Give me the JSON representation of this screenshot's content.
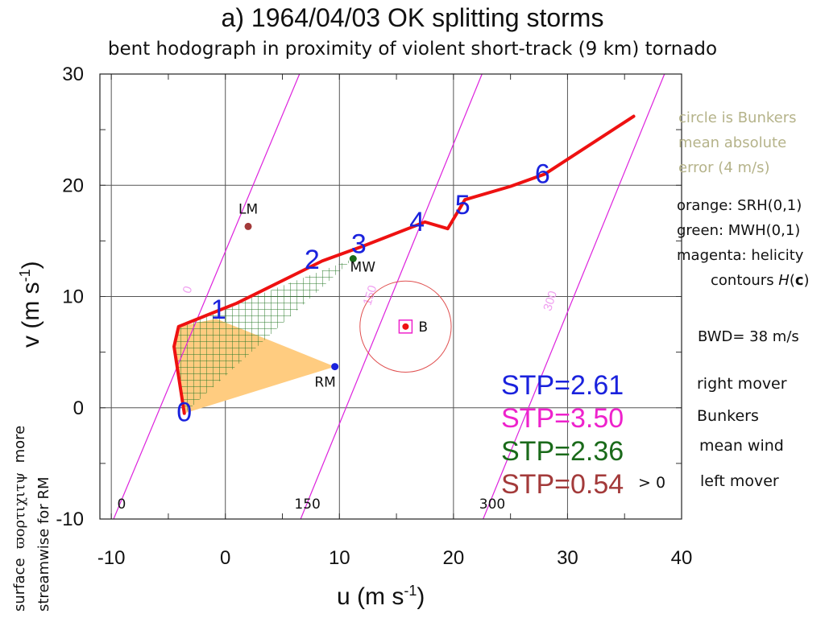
{
  "title": "a)  1964/04/03 OK splitting storms",
  "subtitle": "bent hodograph in proximity of violent short-track (9 km) tornado",
  "colors": {
    "hodograph": "#ee1111",
    "labels_blue": "#1a22dd",
    "srh_fill": "#ffcc80",
    "mwh_hatch": "#2a7a2a",
    "helicity_contour": "#dd22dd",
    "circle": "#e05050",
    "left_mover": "#a33a3a",
    "note": "#b5b38a",
    "stp_rm": "#1a22dd",
    "stp_bunkers": "#ee22cc",
    "stp_mw": "#1a6a1a",
    "stp_lm": "#a33a3a"
  },
  "chart_data": {
    "type": "line",
    "title": "a)  1964/04/03 OK splitting storms",
    "subtitle": "bent hodograph in proximity of violent short-track (9 km) tornado",
    "xlabel_main": "u (m s",
    "xlabel_sup": "-1",
    "xlabel_close": ")",
    "ylabel_main": "v (m s",
    "ylabel_sup": "-1",
    "ylabel_close": ")",
    "xlim": [
      -11,
      40
    ],
    "ylim": [
      -10,
      30
    ],
    "xticks": [
      -10,
      0,
      10,
      20,
      30,
      40
    ],
    "xtick_labels": [
      "-10",
      "0",
      "10",
      "20",
      "30",
      "40"
    ],
    "yticks": [
      -10,
      0,
      10,
      20,
      30
    ],
    "ytick_labels": [
      "-10",
      "0",
      "10",
      "20",
      "30"
    ],
    "grid": true,
    "hodograph": {
      "name": "hodograph",
      "u": [
        -3.6,
        -4.5,
        -4.1,
        1.0,
        8.5,
        12.0,
        17.5,
        19.5,
        21.0,
        25.0,
        28.0,
        35.8
      ],
      "v": [
        -0.5,
        5.5,
        7.3,
        9.4,
        13.2,
        14.5,
        16.7,
        16.1,
        18.7,
        19.9,
        21.0,
        26.2
      ]
    },
    "height_labels": [
      {
        "text": "0",
        "u": -3.6,
        "v": -1.2
      },
      {
        "text": "1",
        "u": -0.6,
        "v": 8.0
      },
      {
        "text": "2",
        "u": 7.6,
        "v": 12.5
      },
      {
        "text": "3",
        "u": 11.7,
        "v": 13.9
      },
      {
        "text": "4",
        "u": 16.8,
        "v": 15.9
      },
      {
        "text": "5",
        "u": 20.8,
        "v": 17.4
      },
      {
        "text": "6",
        "u": 27.8,
        "v": 20.2
      }
    ],
    "storm_motions": [
      {
        "label": "LM",
        "u": 2.0,
        "v": 16.3,
        "color": "#a33a3a"
      },
      {
        "label": "MW",
        "u": 11.2,
        "v": 13.4,
        "color": "#1a6a1a"
      },
      {
        "label": "RM",
        "u": 9.6,
        "v": 3.7,
        "color": "#1a22dd"
      },
      {
        "label": "B",
        "u": 15.8,
        "v": 7.3,
        "color": "#ee1111"
      }
    ],
    "bunkers_error_radius": 4,
    "srh_region": {
      "description": "orange: SRH(0,1)",
      "u": [
        -3.6,
        -4.5,
        -4.1,
        -0.8,
        9.6
      ],
      "v": [
        -0.5,
        5.5,
        7.3,
        8.0,
        3.7
      ]
    },
    "mwh_region": {
      "description": "green: MWH(0,1)",
      "u": [
        -3.6,
        -4.5,
        -4.1,
        1.0,
        11.2
      ],
      "v": [
        -0.5,
        5.5,
        7.3,
        9.4,
        13.4
      ]
    },
    "helicity_contours": [
      {
        "value": "0",
        "u": [
          -9.8,
          6.5
        ],
        "v": [
          -10,
          30
        ],
        "label_u": -3.0,
        "label_v": 10.5
      },
      {
        "value": "150",
        "u": [
          6.6,
          22.5
        ],
        "v": [
          -10,
          30
        ],
        "label_u": 13.0,
        "label_v": 10.0
      },
      {
        "value": "300",
        "u": [
          22.6,
          38.5
        ],
        "v": [
          -10,
          30
        ],
        "label_u": 28.8,
        "label_v": 9.5
      }
    ],
    "bottom_contour_labels": [
      {
        "text": "0",
        "u": -9.1
      },
      {
        "text": "150",
        "u": 7.2
      },
      {
        "text": "300",
        "u": 23.4
      }
    ]
  },
  "notes": {
    "circle_note_lines": [
      "circle is Bunkers",
      "mean absolute",
      "error (4 m/s)"
    ],
    "legend_orange": "orange: SRH(0,1)",
    "legend_green": "green: MWH(0,1)",
    "legend_magenta_line1": "magenta: helicity",
    "legend_magenta_line2_pre": "contours ",
    "legend_magenta_H": "H",
    "legend_magenta_paren_open": "(",
    "legend_magenta_c": "c",
    "legend_magenta_paren_close": ")",
    "bwd": "BWD= 38 m/s"
  },
  "stp": [
    {
      "label": "STP=2.61",
      "mover": "right mover",
      "color": "#1a22dd"
    },
    {
      "label": "STP=3.50",
      "mover": "Bunkers",
      "color": "#ee22cc"
    },
    {
      "label": "STP=2.36",
      "mover": "mean wind",
      "color": "#1a6a1a"
    },
    {
      "label": "STP=0.54",
      "mover": "left mover",
      "color": "#a33a3a"
    }
  ],
  "stp_suffix": "> 0",
  "side_note": {
    "line1_word1": "surface",
    "line1_greek": "ϖορτιχιτψ",
    "line1_word2": "more",
    "line2": "streamwise for RM"
  }
}
